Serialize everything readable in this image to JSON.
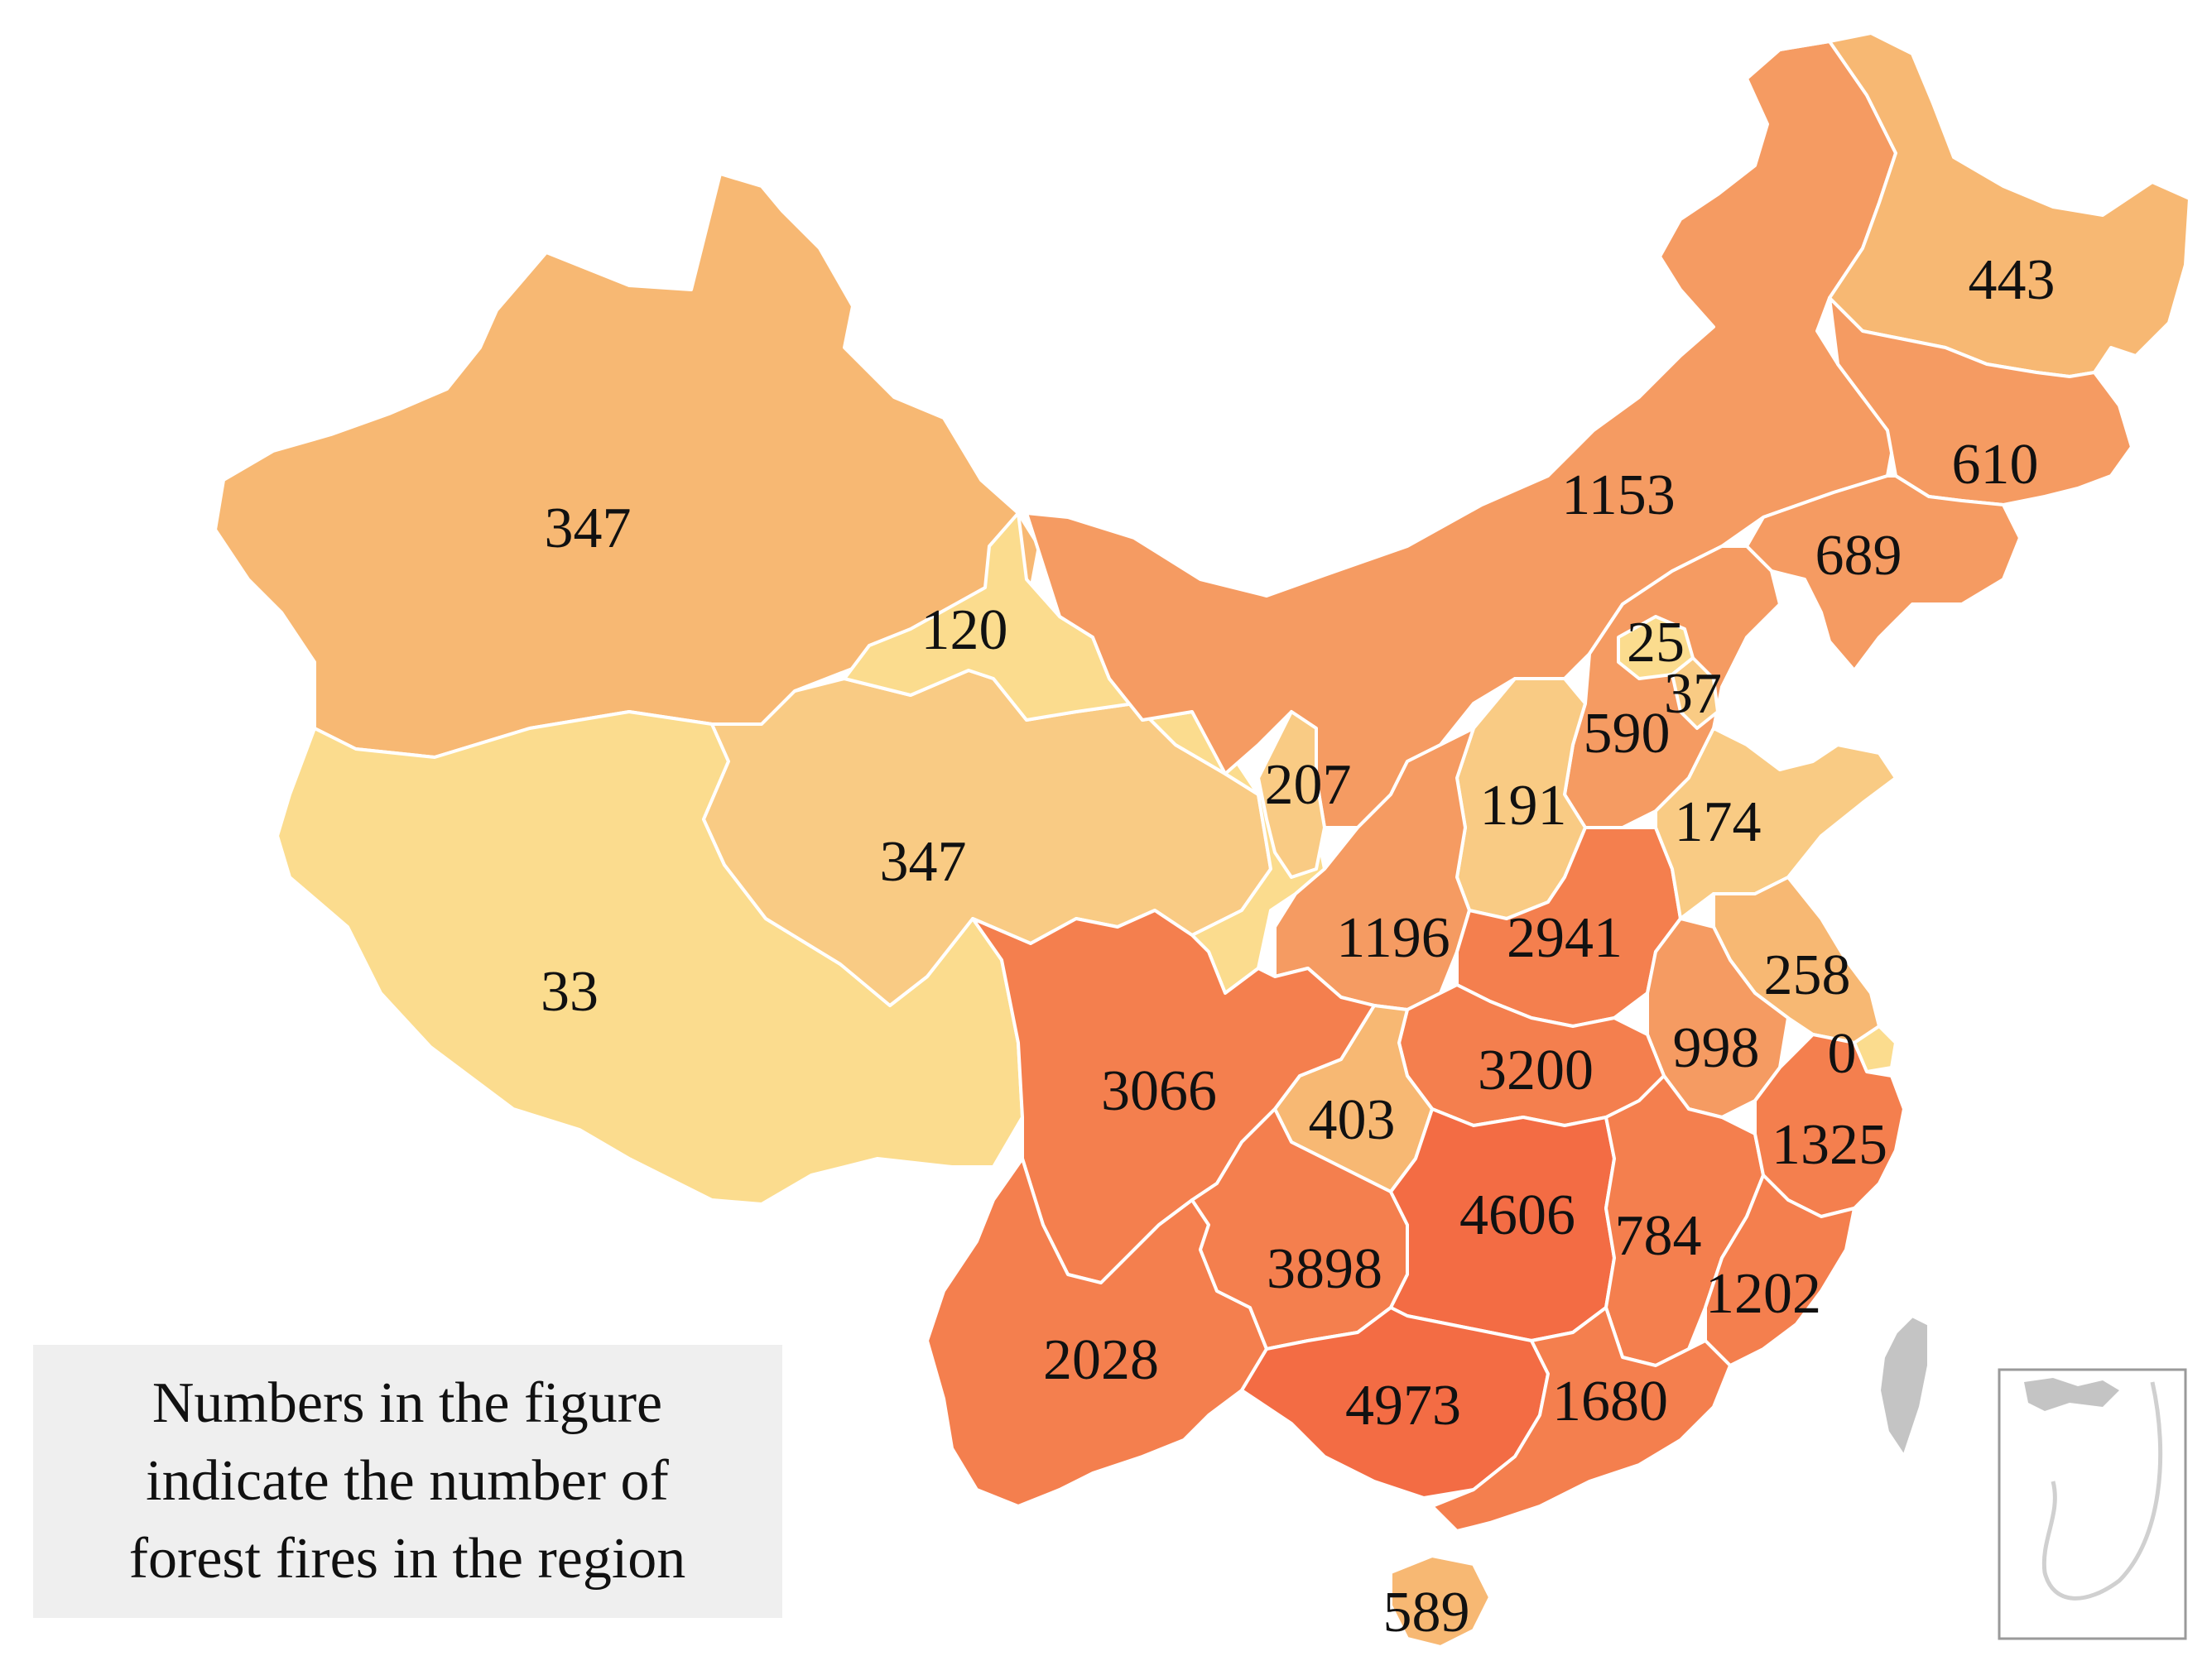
{
  "legend": {
    "lines": [
      "Numbers in the figure",
      "indicate the number of",
      "forest fires in the region"
    ]
  },
  "colors": {
    "low": "#fbdc8e",
    "light": "#f9cb84",
    "light_mid": "#f7b873",
    "mid": "#f59b62",
    "high": "#f47f4e",
    "highest": "#f36c44",
    "taiwan": "#c4c4c4",
    "legend_box": "#efefef",
    "inset_border": "#9a9a9a"
  },
  "regions": [
    {
      "key": "heilongjiang",
      "value": "443",
      "tier": "light_mid"
    },
    {
      "key": "jilin",
      "value": "610",
      "tier": "mid"
    },
    {
      "key": "liaoning",
      "value": "689",
      "tier": "mid"
    },
    {
      "key": "inner_mongolia",
      "value": "1153",
      "tier": "mid"
    },
    {
      "key": "xinjiang",
      "value": "347",
      "tier": "light_mid"
    },
    {
      "key": "gansu",
      "value": "120",
      "tier": "low"
    },
    {
      "key": "beijing",
      "value": "25",
      "tier": "low"
    },
    {
      "key": "tianjin",
      "value": "37",
      "tier": "light"
    },
    {
      "key": "hebei",
      "value": "590",
      "tier": "mid"
    },
    {
      "key": "ningxia",
      "value": "207",
      "tier": "light"
    },
    {
      "key": "shanxi",
      "value": "191",
      "tier": "light"
    },
    {
      "key": "shandong",
      "value": "174",
      "tier": "light"
    },
    {
      "key": "qinghai",
      "value": "347",
      "tier": "light"
    },
    {
      "key": "tibet",
      "value": "33",
      "tier": "low"
    },
    {
      "key": "shaanxi",
      "value": "1196",
      "tier": "mid"
    },
    {
      "key": "henan",
      "value": "2941",
      "tier": "high"
    },
    {
      "key": "jiangsu",
      "value": "258",
      "tier": "light_mid"
    },
    {
      "key": "anhui",
      "value": "998",
      "tier": "mid"
    },
    {
      "key": "shanghai",
      "value": "0",
      "tier": "low"
    },
    {
      "key": "sichuan",
      "value": "3066",
      "tier": "high"
    },
    {
      "key": "hubei",
      "value": "3200",
      "tier": "high"
    },
    {
      "key": "chongqing",
      "value": "403",
      "tier": "light_mid"
    },
    {
      "key": "zhejiang",
      "value": "1325",
      "tier": "high"
    },
    {
      "key": "hunan",
      "value": "4606",
      "tier": "highest"
    },
    {
      "key": "jiangxi",
      "value": "784",
      "tier": "high"
    },
    {
      "key": "guizhou",
      "value": "3898",
      "tier": "high"
    },
    {
      "key": "fujian",
      "value": "1202",
      "tier": "high"
    },
    {
      "key": "yunnan",
      "value": "2028",
      "tier": "high"
    },
    {
      "key": "guangxi",
      "value": "4973",
      "tier": "highest"
    },
    {
      "key": "guangdong",
      "value": "1680",
      "tier": "high"
    },
    {
      "key": "hainan",
      "value": "589",
      "tier": "light_mid"
    }
  ]
}
